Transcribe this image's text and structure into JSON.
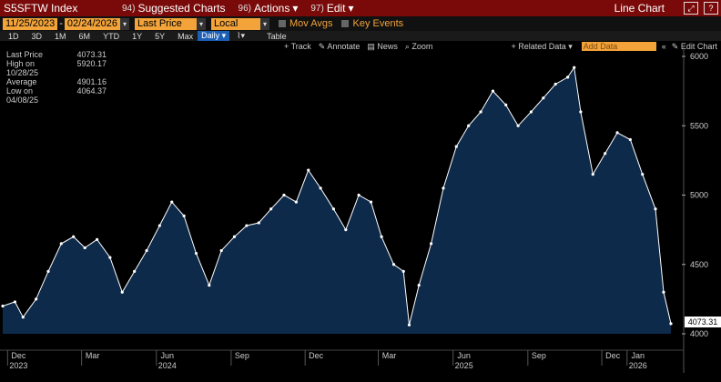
{
  "header": {
    "ticker": "S5SFTW Index",
    "menus": [
      {
        "num": "94)",
        "label": "Suggested Charts"
      },
      {
        "num": "96)",
        "label": "Actions",
        "caret": "▾"
      },
      {
        "num": "97)",
        "label": "Edit",
        "caret": "▾"
      }
    ],
    "title": "Line Chart",
    "window_icons": [
      "⤢",
      "?"
    ]
  },
  "controls": {
    "start_date": "11/25/2023",
    "end_date": "02/24/2026",
    "price_field": "Last Price",
    "currency": "Local CCY",
    "mov_avgs": "Mov Avgs",
    "key_events": "Key Events"
  },
  "periods": [
    "1D",
    "3D",
    "1M",
    "6M",
    "YTD",
    "1Y",
    "5Y",
    "Max"
  ],
  "frequency": "Daily",
  "table_label": "Table",
  "toolbar": {
    "track": "Track",
    "annotate": "Annotate",
    "news": "News",
    "zoom": "Zoom",
    "related_data": "Related Data",
    "add_data_placeholder": "Add Data",
    "edit_chart": "Edit Chart"
  },
  "legend": [
    {
      "label": "Last Price",
      "value": "4073.31"
    },
    {
      "label": "High on 10/28/25",
      "value": "5920.17"
    },
    {
      "label": "Average",
      "value": "4901.16"
    },
    {
      "label": "Low on 04/08/25",
      "value": "4064.37"
    }
  ],
  "last_value_tag": "4073.31",
  "colors": {
    "header_bg": "#7a0a0a",
    "accent": "#f2a33a",
    "series": "#ffffff",
    "area": "#0e2a4a",
    "frequency_bg": "#1d5fb5"
  },
  "chart_data": {
    "type": "area",
    "ylim": [
      4000,
      6000
    ],
    "yticks": [
      4000,
      4500,
      5000,
      5500,
      6000
    ],
    "xticks": [
      {
        "label": "Dec",
        "year": "2023",
        "x": "2023-12-01"
      },
      {
        "label": "Mar",
        "year": "",
        "x": "2024-03-01"
      },
      {
        "label": "Jun",
        "year": "2024",
        "x": "2024-06-01"
      },
      {
        "label": "Sep",
        "year": "",
        "x": "2024-09-01"
      },
      {
        "label": "Dec",
        "year": "",
        "x": "2024-12-01"
      },
      {
        "label": "Mar",
        "year": "",
        "x": "2025-03-01"
      },
      {
        "label": "Jun",
        "year": "2025",
        "x": "2025-06-01"
      },
      {
        "label": "Sep",
        "year": "",
        "x": "2025-09-01"
      },
      {
        "label": "Dec",
        "year": "",
        "x": "2025-12-01"
      },
      {
        "label": "Jan",
        "year": "2026",
        "x": "2026-01-01"
      }
    ],
    "xlim": [
      "2023-11-25",
      "2026-02-24"
    ],
    "series": [
      {
        "x": [
          "2023-11-25",
          "2023-12-10",
          "2023-12-20",
          "2024-01-05",
          "2024-01-20",
          "2024-02-05",
          "2024-02-20",
          "2024-03-05",
          "2024-03-20",
          "2024-04-05",
          "2024-04-20",
          "2024-05-05",
          "2024-05-20",
          "2024-06-05",
          "2024-06-20",
          "2024-07-05",
          "2024-07-20",
          "2024-08-05",
          "2024-08-20",
          "2024-09-05",
          "2024-09-20",
          "2024-10-05",
          "2024-10-20",
          "2024-11-05",
          "2024-11-20",
          "2024-12-05",
          "2024-12-20",
          "2025-01-05",
          "2025-01-20",
          "2025-02-05",
          "2025-02-20",
          "2025-03-05",
          "2025-03-20",
          "2025-04-01",
          "2025-04-08",
          "2025-04-20",
          "2025-05-05",
          "2025-05-20",
          "2025-06-05",
          "2025-06-20",
          "2025-07-05",
          "2025-07-20",
          "2025-08-05",
          "2025-08-20",
          "2025-09-05",
          "2025-09-20",
          "2025-10-05",
          "2025-10-20",
          "2025-10-28",
          "2025-11-05",
          "2025-11-20",
          "2025-12-05",
          "2025-12-20",
          "2026-01-05",
          "2026-01-20",
          "2026-02-05",
          "2026-02-15",
          "2026-02-24"
        ],
        "y": [
          4200,
          4230,
          4120,
          4250,
          4450,
          4650,
          4700,
          4620,
          4680,
          4550,
          4300,
          4450,
          4600,
          4780,
          4950,
          4850,
          4580,
          4350,
          4600,
          4700,
          4780,
          4800,
          4900,
          5000,
          4950,
          5180,
          5050,
          4900,
          4750,
          5000,
          4950,
          4700,
          4500,
          4450,
          4064,
          4350,
          4650,
          5050,
          5350,
          5500,
          5600,
          5750,
          5650,
          5500,
          5600,
          5700,
          5800,
          5850,
          5920,
          5600,
          5150,
          5300,
          5450,
          5400,
          5150,
          4900,
          4300,
          4073
        ]
      }
    ]
  }
}
